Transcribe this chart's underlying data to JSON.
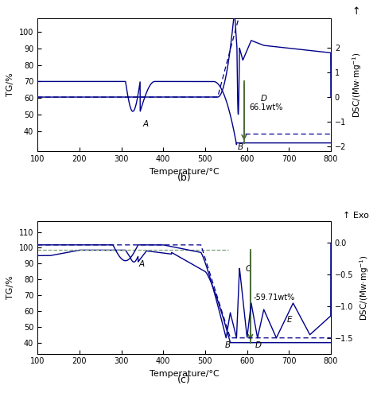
{
  "blue": "#00008B",
  "green_arrow": "#4B6B3A",
  "green_tg_line": "#7BA07A",
  "chart_b": {
    "tg_ylim": [
      28,
      108
    ],
    "tg_yticks": [
      40,
      50,
      60,
      70,
      80,
      90,
      100
    ],
    "dsc_ylim": [
      -2.2,
      3.2
    ],
    "dsc_yticks": [
      -2,
      -1,
      0,
      1,
      2
    ],
    "xlim": [
      100,
      800
    ],
    "xticks": [
      100,
      200,
      300,
      400,
      500,
      600,
      700,
      800
    ],
    "wt_label": "66.1wt%",
    "label": "(b)"
  },
  "chart_c": {
    "tg_ylim": [
      33,
      117
    ],
    "tg_yticks": [
      40,
      50,
      60,
      70,
      80,
      90,
      100,
      110
    ],
    "dsc_ylim": [
      -1.75,
      0.35
    ],
    "dsc_yticks": [
      -1.5,
      -1.0,
      -0.5,
      0
    ],
    "xlim": [
      100,
      800
    ],
    "xticks": [
      100,
      200,
      300,
      400,
      500,
      600,
      700,
      800
    ],
    "wt_label": "-59.71wt%",
    "label": "(c)"
  }
}
